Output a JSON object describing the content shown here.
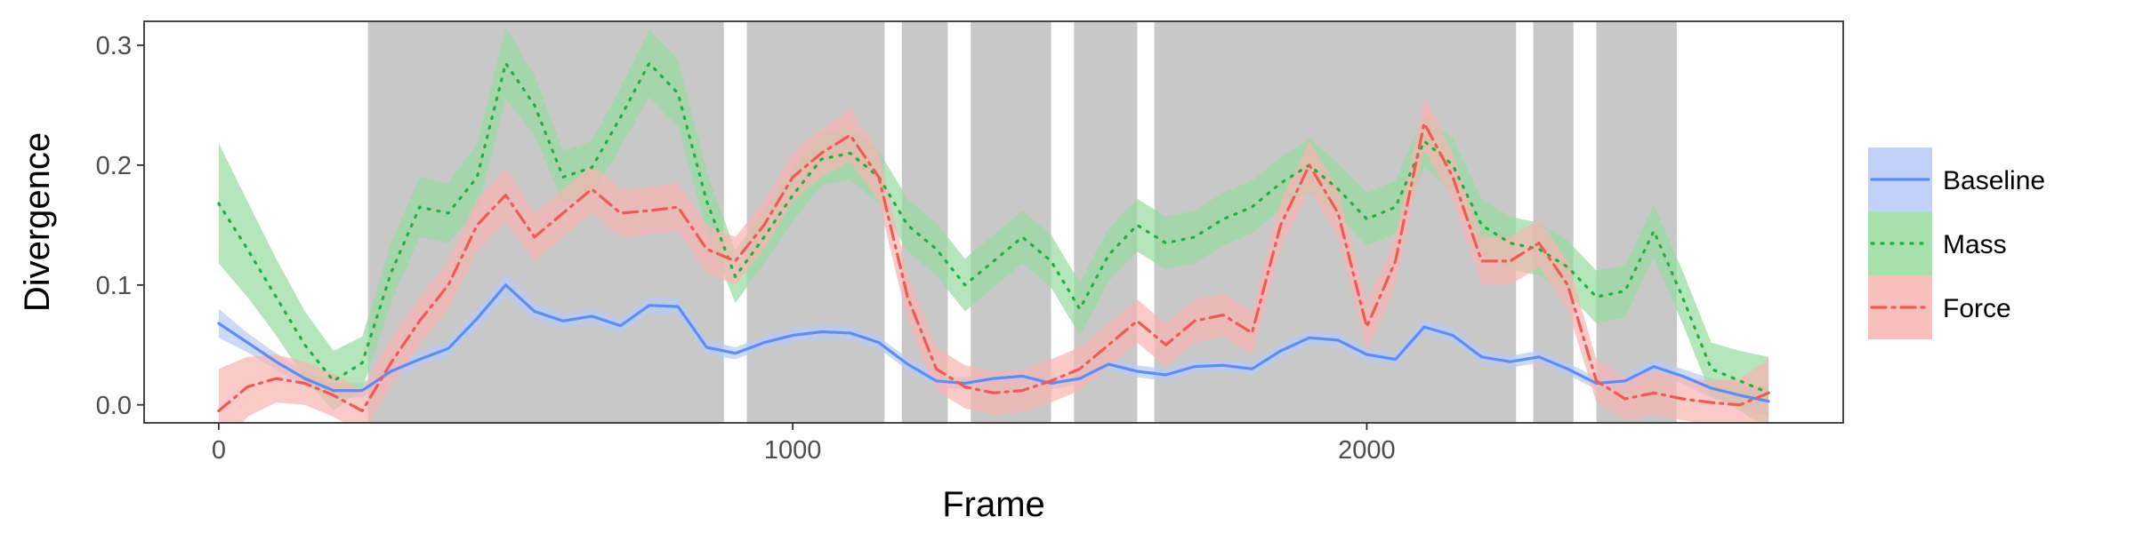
{
  "chart_data": {
    "type": "line",
    "title": "",
    "xlabel": "Frame",
    "ylabel": "Divergence",
    "xlim": [
      -130,
      2830
    ],
    "ylim": [
      -0.015,
      0.32
    ],
    "xticks": [
      0,
      1000,
      2000
    ],
    "yticks": [
      0.0,
      0.1,
      0.2,
      0.3
    ],
    "xtick_labels": [
      "0",
      "1000",
      "2000"
    ],
    "ytick_labels": [
      "0.0",
      "0.1",
      "0.2",
      "0.3"
    ],
    "grid": false,
    "legend_position": "right",
    "shaded_intervals": [
      [
        260,
        880
      ],
      [
        920,
        1160
      ],
      [
        1190,
        1270
      ],
      [
        1310,
        1450
      ],
      [
        1490,
        1600
      ],
      [
        1630,
        2260
      ],
      [
        2290,
        2360
      ],
      [
        2400,
        2540
      ]
    ],
    "shade_color": "#c8c8c8",
    "series": [
      {
        "name": "Baseline",
        "color": "#5c8ef2",
        "fill": "#b7c9f7",
        "style": "solid",
        "x": [
          0,
          50,
          100,
          150,
          200,
          250,
          300,
          350,
          400,
          450,
          500,
          550,
          600,
          650,
          700,
          750,
          800,
          850,
          900,
          950,
          1000,
          1050,
          1100,
          1150,
          1200,
          1250,
          1300,
          1350,
          1400,
          1450,
          1500,
          1550,
          1600,
          1650,
          1700,
          1750,
          1800,
          1850,
          1900,
          1950,
          2000,
          2050,
          2100,
          2150,
          2200,
          2250,
          2300,
          2350,
          2400,
          2450,
          2500,
          2550,
          2600,
          2650,
          2700
        ],
        "y": [
          0.068,
          0.052,
          0.036,
          0.022,
          0.012,
          0.012,
          0.028,
          0.038,
          0.047,
          0.072,
          0.1,
          0.078,
          0.07,
          0.074,
          0.066,
          0.083,
          0.082,
          0.048,
          0.043,
          0.052,
          0.058,
          0.061,
          0.06,
          0.052,
          0.034,
          0.02,
          0.018,
          0.022,
          0.024,
          0.018,
          0.022,
          0.034,
          0.028,
          0.025,
          0.032,
          0.033,
          0.03,
          0.045,
          0.056,
          0.054,
          0.042,
          0.038,
          0.065,
          0.058,
          0.04,
          0.036,
          0.04,
          0.03,
          0.018,
          0.02,
          0.032,
          0.024,
          0.014,
          0.008,
          0.003
        ],
        "err": [
          0.012,
          0.008,
          0.007,
          0.006,
          0.006,
          0.006,
          0.006,
          0.006,
          0.006,
          0.008,
          0.009,
          0.007,
          0.006,
          0.006,
          0.006,
          0.007,
          0.007,
          0.006,
          0.005,
          0.005,
          0.006,
          0.006,
          0.006,
          0.005,
          0.005,
          0.005,
          0.005,
          0.005,
          0.005,
          0.005,
          0.005,
          0.005,
          0.005,
          0.005,
          0.005,
          0.005,
          0.005,
          0.006,
          0.006,
          0.006,
          0.005,
          0.005,
          0.006,
          0.006,
          0.005,
          0.005,
          0.005,
          0.005,
          0.005,
          0.005,
          0.006,
          0.006,
          0.008,
          0.01,
          0.012
        ]
      },
      {
        "name": "Mass",
        "color": "#21ae3f",
        "fill": "#96dc9e",
        "style": "dotted",
        "x": [
          0,
          50,
          100,
          150,
          200,
          250,
          300,
          350,
          400,
          450,
          500,
          550,
          600,
          650,
          700,
          750,
          800,
          850,
          900,
          950,
          1000,
          1050,
          1100,
          1150,
          1200,
          1250,
          1300,
          1350,
          1400,
          1450,
          1500,
          1550,
          1600,
          1650,
          1700,
          1750,
          1800,
          1850,
          1900,
          1950,
          2000,
          2050,
          2100,
          2150,
          2200,
          2250,
          2300,
          2350,
          2400,
          2450,
          2500,
          2550,
          2600,
          2650,
          2700
        ],
        "y": [
          0.168,
          0.13,
          0.09,
          0.05,
          0.02,
          0.035,
          0.11,
          0.165,
          0.16,
          0.19,
          0.285,
          0.25,
          0.19,
          0.198,
          0.24,
          0.285,
          0.26,
          0.17,
          0.107,
          0.14,
          0.175,
          0.205,
          0.21,
          0.19,
          0.15,
          0.13,
          0.1,
          0.12,
          0.14,
          0.12,
          0.08,
          0.125,
          0.15,
          0.135,
          0.14,
          0.155,
          0.165,
          0.185,
          0.2,
          0.18,
          0.155,
          0.165,
          0.22,
          0.2,
          0.15,
          0.135,
          0.13,
          0.115,
          0.09,
          0.095,
          0.145,
          0.09,
          0.03,
          0.02,
          0.01
        ],
        "err": [
          0.05,
          0.04,
          0.032,
          0.028,
          0.025,
          0.022,
          0.025,
          0.025,
          0.025,
          0.028,
          0.03,
          0.025,
          0.022,
          0.022,
          0.025,
          0.028,
          0.028,
          0.025,
          0.022,
          0.022,
          0.022,
          0.022,
          0.022,
          0.022,
          0.022,
          0.022,
          0.022,
          0.022,
          0.022,
          0.022,
          0.022,
          0.022,
          0.022,
          0.022,
          0.022,
          0.022,
          0.022,
          0.022,
          0.022,
          0.022,
          0.022,
          0.022,
          0.022,
          0.022,
          0.022,
          0.022,
          0.022,
          0.022,
          0.022,
          0.022,
          0.022,
          0.022,
          0.022,
          0.025,
          0.03
        ]
      },
      {
        "name": "Force",
        "color": "#ef5a55",
        "fill": "#f6b3b0",
        "style": "dashdot",
        "x": [
          0,
          50,
          100,
          150,
          200,
          250,
          300,
          350,
          400,
          450,
          500,
          550,
          600,
          650,
          700,
          750,
          800,
          850,
          900,
          950,
          1000,
          1050,
          1100,
          1150,
          1200,
          1250,
          1300,
          1350,
          1400,
          1450,
          1500,
          1550,
          1600,
          1650,
          1700,
          1750,
          1800,
          1850,
          1900,
          1950,
          2000,
          2050,
          2100,
          2150,
          2200,
          2250,
          2300,
          2350,
          2400,
          2450,
          2500,
          2550,
          2600,
          2650,
          2700
        ],
        "y": [
          -0.005,
          0.015,
          0.022,
          0.018,
          0.008,
          -0.005,
          0.035,
          0.07,
          0.1,
          0.15,
          0.175,
          0.14,
          0.16,
          0.18,
          0.16,
          0.162,
          0.165,
          0.13,
          0.12,
          0.15,
          0.19,
          0.21,
          0.225,
          0.19,
          0.09,
          0.03,
          0.015,
          0.01,
          0.012,
          0.02,
          0.03,
          0.05,
          0.07,
          0.05,
          0.07,
          0.075,
          0.06,
          0.15,
          0.2,
          0.16,
          0.065,
          0.12,
          0.235,
          0.19,
          0.12,
          0.12,
          0.135,
          0.1,
          0.02,
          0.005,
          0.01,
          0.005,
          0.002,
          0.0,
          0.01
        ],
        "err": [
          0.035,
          0.025,
          0.02,
          0.018,
          0.018,
          0.018,
          0.02,
          0.02,
          0.02,
          0.022,
          0.022,
          0.02,
          0.02,
          0.02,
          0.02,
          0.02,
          0.02,
          0.02,
          0.02,
          0.02,
          0.02,
          0.02,
          0.022,
          0.02,
          0.02,
          0.018,
          0.018,
          0.018,
          0.018,
          0.018,
          0.018,
          0.018,
          0.018,
          0.018,
          0.018,
          0.018,
          0.018,
          0.02,
          0.02,
          0.02,
          0.02,
          0.02,
          0.022,
          0.02,
          0.02,
          0.02,
          0.02,
          0.02,
          0.018,
          0.018,
          0.018,
          0.018,
          0.018,
          0.022,
          0.028
        ]
      }
    ]
  }
}
